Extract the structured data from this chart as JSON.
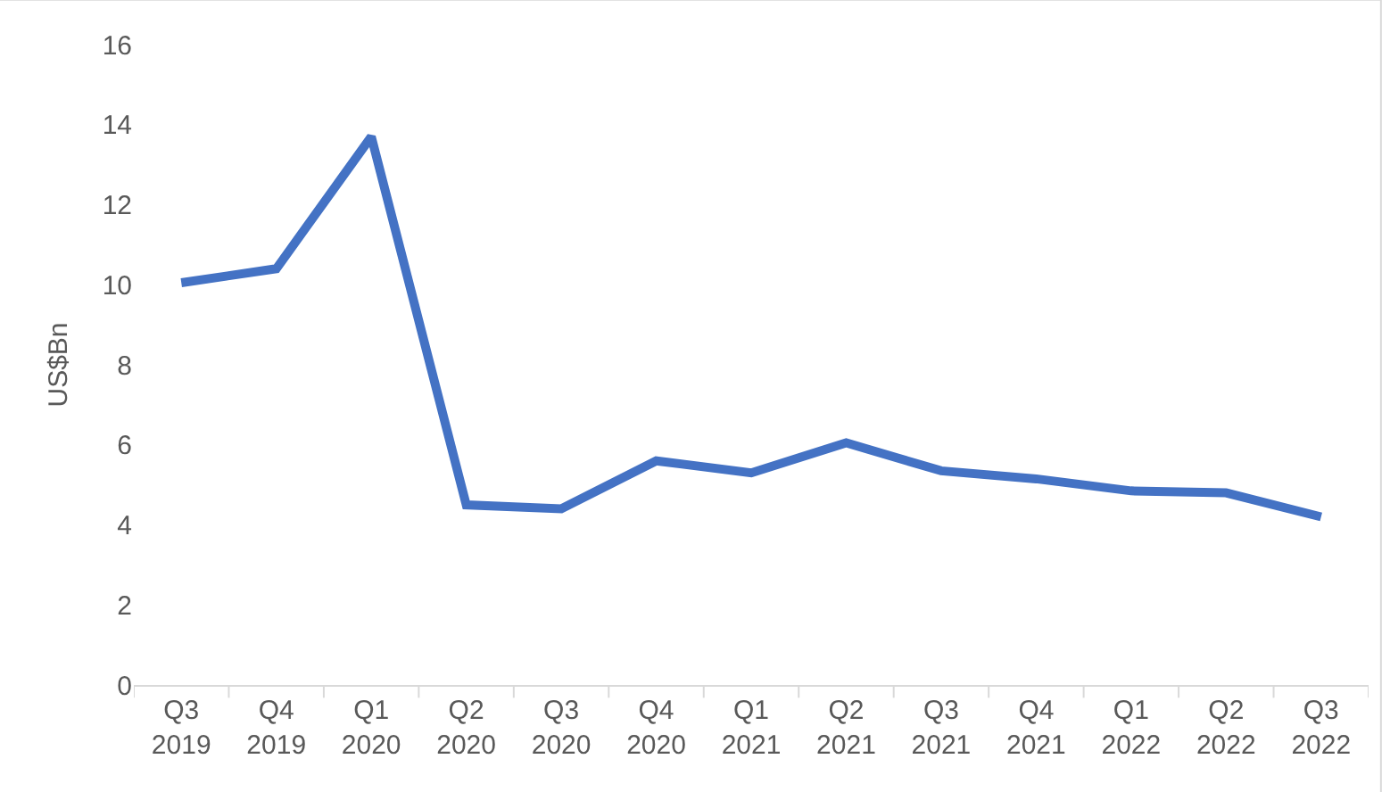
{
  "chart_data": {
    "type": "line",
    "ylabel": "US$Bn",
    "categories": [
      "Q3\n2019",
      "Q4\n2019",
      "Q1\n2020",
      "Q2\n2020",
      "Q3\n2020",
      "Q4\n2020",
      "Q1\n2021",
      "Q2\n2021",
      "Q3\n2021",
      "Q4\n2021",
      "Q1\n2022",
      "Q2\n2022",
      "Q3\n2022"
    ],
    "series": [
      {
        "color": "#4472c4",
        "values": [
          10.05,
          10.4,
          13.7,
          4.5,
          4.4,
          5.6,
          5.3,
          6.05,
          5.35,
          5.15,
          4.85,
          4.8,
          4.2
        ]
      }
    ],
    "ylim": [
      0,
      16
    ],
    "yticks": [
      0,
      2,
      4,
      6,
      8,
      10,
      12,
      14,
      16
    ],
    "marker": "none",
    "line_style": "solid"
  }
}
